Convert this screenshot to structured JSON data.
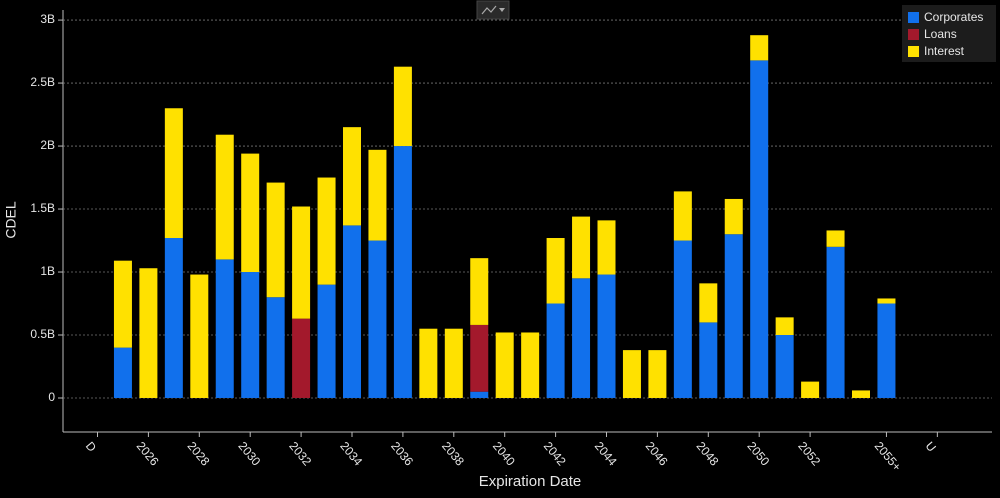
{
  "chart_data": {
    "type": "stacked-bar",
    "x_label": "Expiration Date",
    "y_label": "CDEL",
    "categories": [
      "D",
      null,
      "2026",
      null,
      "2028",
      null,
      "2030",
      null,
      "2032",
      null,
      "2034",
      null,
      "2036",
      null,
      "2038",
      null,
      "2040",
      null,
      "2042",
      null,
      "2044",
      null,
      "2046",
      null,
      "2048",
      null,
      "2050",
      null,
      "2052",
      null,
      null,
      "2055+",
      null,
      "U"
    ],
    "series": [
      {
        "name": "Corporates",
        "color": "#1170ec",
        "values": [
          null,
          0.4,
          0,
          1.27,
          0,
          1.1,
          1.0,
          0.8,
          0,
          0.9,
          1.37,
          1.25,
          2.0,
          0,
          0,
          0.05,
          0,
          0,
          0.75,
          0.95,
          0.98,
          0,
          0,
          1.25,
          0.6,
          1.3,
          2.68,
          0.5,
          0,
          1.2,
          0,
          0.75,
          null,
          null
        ]
      },
      {
        "name": "Loans",
        "color": "#a3192c",
        "values": [
          null,
          0,
          0,
          0,
          0,
          0,
          0,
          0,
          0.63,
          0,
          0,
          0,
          0,
          0,
          0,
          0.53,
          0,
          0,
          0,
          0,
          0,
          0,
          0,
          0,
          0,
          0,
          0,
          0,
          0,
          0,
          0,
          0,
          null,
          null
        ]
      },
      {
        "name": "Interest",
        "color": "#ffe100",
        "values": [
          null,
          0.69,
          1.03,
          1.03,
          0.98,
          0.99,
          0.94,
          0.91,
          0.89,
          0.85,
          0.78,
          0.72,
          0.63,
          0.55,
          0.55,
          0.53,
          0.52,
          0.52,
          0.52,
          0.49,
          0.43,
          0.38,
          0.38,
          0.39,
          0.31,
          0.28,
          0.2,
          0.14,
          0.13,
          0.13,
          0.06,
          0.04,
          null,
          null
        ]
      }
    ],
    "ylim": [
      -0.27,
      3.08
    ],
    "yticks": [
      0,
      {
        "value": 0.5,
        "label": "0.5B"
      },
      {
        "value": 1,
        "label": "1B"
      },
      {
        "value": 1.5,
        "label": "1.5B"
      },
      {
        "value": 2,
        "label": "2B"
      },
      {
        "value": 2.5,
        "label": "2.5B"
      },
      {
        "value": 3,
        "label": "3B"
      }
    ],
    "grid": true,
    "legend": "top-right"
  }
}
